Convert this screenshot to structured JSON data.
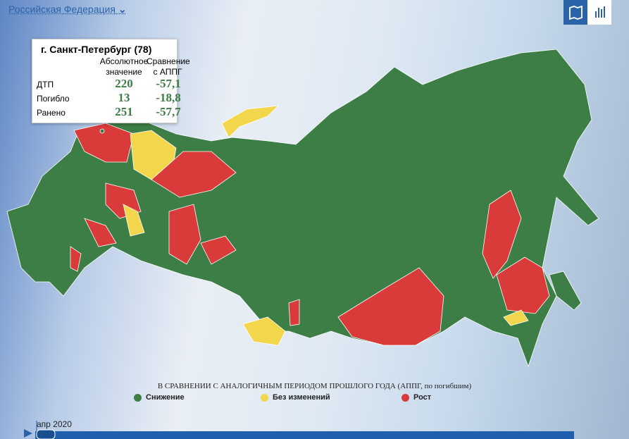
{
  "header": {
    "region_selector": "Российская Федерация"
  },
  "tooltip": {
    "title": "г. Санкт-Петербург (78)",
    "columns": [
      "Абсолютное значение",
      "Сравнение с АППГ"
    ],
    "rows": [
      [
        "ДТП",
        "220",
        "-57,1"
      ],
      [
        "Погибло",
        "13",
        "-18,8"
      ],
      [
        "Ранено",
        "251",
        "-57,7"
      ]
    ]
  },
  "legend": {
    "title": "В СРАВНЕНИИ С АНАЛОГИЧНЫМ ПЕРИОДОМ ПРОШЛОГО ГОДА (АППГ, по погибшим)",
    "items": [
      {
        "label": "Снижение",
        "color": "#3d7d46"
      },
      {
        "label": "Без изменений",
        "color": "#f2d64b"
      },
      {
        "label": "Рост",
        "color": "#d93a3a"
      }
    ]
  },
  "timeline": {
    "label": "апр 2020"
  }
}
